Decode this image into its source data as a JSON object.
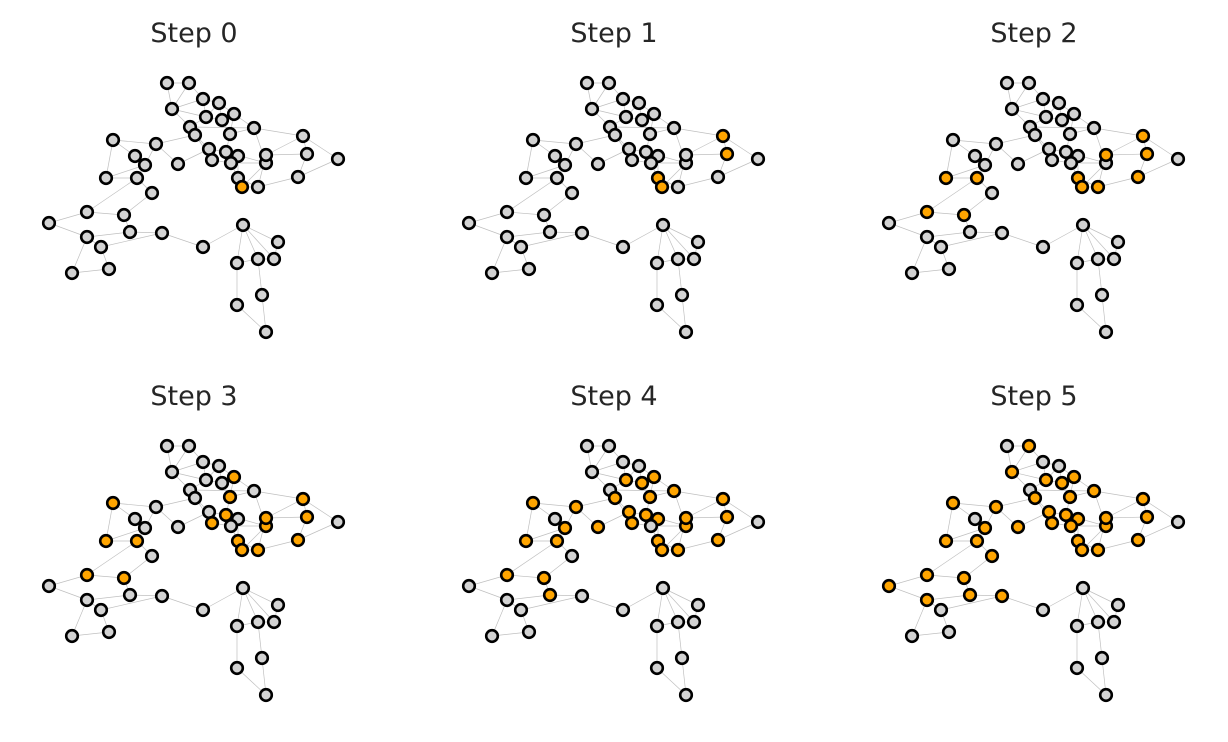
{
  "colors": {
    "background": "#ffffff",
    "edge": "#b9b9b9",
    "inactive_node": "#d3d3d3",
    "active_node": "#ffa500",
    "node_stroke": "#000000",
    "title_text": "#262626"
  },
  "panels": [
    {
      "title": "Step 0",
      "active": [
        26
      ]
    },
    {
      "title": "Step 1",
      "active": [
        26,
        25,
        29,
        30
      ]
    },
    {
      "title": "Step 2",
      "active": [
        26,
        25,
        29,
        30,
        22,
        23,
        27,
        28,
        31,
        34,
        35
      ]
    },
    {
      "title": "Step 3",
      "active": [
        26,
        25,
        29,
        30,
        22,
        23,
        27,
        28,
        31,
        34,
        35,
        7,
        10,
        13,
        14,
        17,
        21
      ]
    },
    {
      "title": "Step 4",
      "active": [
        26,
        25,
        29,
        30,
        22,
        23,
        27,
        28,
        31,
        34,
        35,
        7,
        10,
        13,
        14,
        17,
        21,
        5,
        6,
        9,
        11,
        12,
        15,
        19,
        20,
        24,
        37
      ]
    },
    {
      "title": "Step 5",
      "active": [
        26,
        25,
        29,
        30,
        22,
        23,
        27,
        28,
        31,
        34,
        35,
        7,
        10,
        13,
        14,
        17,
        21,
        5,
        6,
        9,
        11,
        12,
        15,
        19,
        20,
        24,
        37,
        1,
        2,
        16,
        36,
        38,
        33,
        40
      ]
    }
  ]
}
